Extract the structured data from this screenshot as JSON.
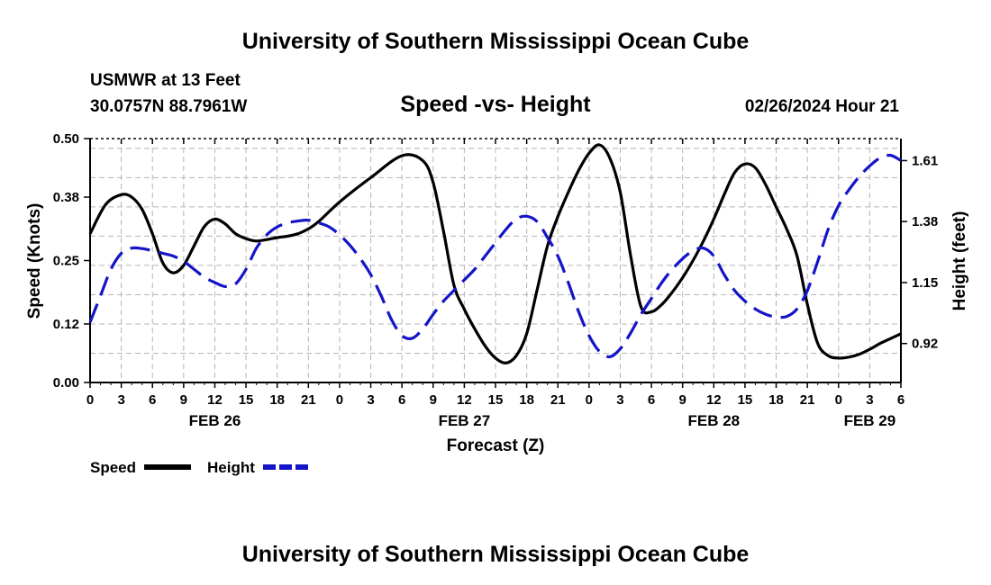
{
  "page": {
    "title_top": "University of Southern Mississippi Ocean Cube",
    "title_bottom": "University of Southern Mississippi Ocean Cube",
    "station": "USMWR at 13 Feet",
    "coords": "30.0757N  88.7961W",
    "chart_title": "Speed -vs- Height",
    "datetime": "02/26/2024 Hour 21"
  },
  "chart_data": {
    "type": "line",
    "title": "Speed -vs- Height",
    "xlabel": "Forecast (Z)",
    "ylabel": "Speed (Knots)",
    "y2label": "Height (feet)",
    "grid": true,
    "x_unit": "hours since FEB 26 00Z",
    "xlim": [
      0,
      78
    ],
    "ylim": [
      0,
      0.5
    ],
    "y2lim": [
      0.773,
      1.693
    ],
    "yticks": [
      0.0,
      0.12,
      0.25,
      0.38,
      0.5
    ],
    "ytick_labels": [
      "0.00",
      "0.12",
      "0.25",
      "0.38",
      "0.50"
    ],
    "y2ticks": [
      0.92,
      1.15,
      1.38,
      1.61
    ],
    "y2tick_labels": [
      "0.92",
      "1.15",
      "1.38",
      "1.61"
    ],
    "xtick_hours": [
      0,
      3,
      6,
      9,
      12,
      15,
      18,
      21,
      24,
      27,
      30,
      33,
      36,
      39,
      42,
      45,
      48,
      51,
      54,
      57,
      60,
      63,
      66,
      69,
      72,
      75,
      78
    ],
    "xtick_labels": [
      "0",
      "3",
      "6",
      "9",
      "12",
      "15",
      "18",
      "21",
      "0",
      "3",
      "6",
      "9",
      "12",
      "15",
      "18",
      "21",
      "0",
      "3",
      "6",
      "9",
      "12",
      "15",
      "18",
      "21",
      "0",
      "3",
      "6"
    ],
    "day_labels": [
      {
        "hour": 12,
        "label": "FEB 26"
      },
      {
        "hour": 36,
        "label": "FEB 27"
      },
      {
        "hour": 60,
        "label": "FEB 28"
      },
      {
        "hour": 75,
        "label": "FEB 29"
      }
    ],
    "legend": [
      {
        "label": "Speed",
        "color": "#000000",
        "style": "solid"
      },
      {
        "label": "Height",
        "color": "#1414c8",
        "style": "dashed"
      }
    ],
    "series": [
      {
        "name": "Speed",
        "axis": "left",
        "color": "#000000",
        "x": [
          0,
          1.5,
          3,
          4,
          5,
          6,
          7,
          8,
          9,
          10,
          11,
          12,
          13,
          14,
          15,
          16,
          17,
          18,
          19,
          20,
          21,
          22,
          24,
          27,
          30,
          32,
          33,
          34,
          35,
          36,
          37,
          38,
          39,
          40,
          41,
          42,
          43,
          44,
          45,
          46,
          47,
          48,
          49,
          50,
          51,
          52,
          53,
          54,
          55,
          56,
          57,
          58,
          59,
          60,
          61,
          62,
          63,
          64,
          65,
          66,
          67,
          68,
          69,
          70,
          71,
          72,
          73,
          74,
          75,
          76,
          77,
          78
        ],
        "values": [
          0.305,
          0.365,
          0.385,
          0.38,
          0.355,
          0.305,
          0.245,
          0.225,
          0.24,
          0.28,
          0.32,
          0.335,
          0.325,
          0.305,
          0.295,
          0.29,
          0.293,
          0.297,
          0.3,
          0.305,
          0.315,
          0.33,
          0.37,
          0.42,
          0.465,
          0.455,
          0.41,
          0.31,
          0.2,
          0.15,
          0.11,
          0.075,
          0.05,
          0.04,
          0.055,
          0.1,
          0.19,
          0.28,
          0.34,
          0.39,
          0.435,
          0.47,
          0.487,
          0.46,
          0.39,
          0.26,
          0.155,
          0.145,
          0.16,
          0.185,
          0.215,
          0.25,
          0.29,
          0.335,
          0.385,
          0.43,
          0.448,
          0.44,
          0.405,
          0.36,
          0.315,
          0.26,
          0.16,
          0.08,
          0.055,
          0.05,
          0.052,
          0.058,
          0.068,
          0.08,
          0.09,
          0.1
        ]
      },
      {
        "name": "Height",
        "axis": "right",
        "color": "#1414c8",
        "x": [
          0,
          1,
          2,
          3,
          4,
          5,
          6,
          7,
          8,
          9,
          10,
          11,
          12,
          13,
          14,
          15,
          16,
          17,
          18,
          19,
          20,
          21,
          22,
          23,
          24,
          25,
          26,
          27,
          28,
          29,
          30,
          31,
          32,
          33,
          34,
          35,
          36,
          37,
          38,
          39,
          40,
          41,
          42,
          43,
          44,
          45,
          46,
          47,
          48,
          49,
          50,
          51,
          52,
          53,
          54,
          55,
          56,
          57,
          58,
          59,
          60,
          61,
          62,
          63,
          64,
          65,
          66,
          67,
          68,
          69,
          70,
          71,
          72,
          73,
          74,
          75,
          76,
          77,
          78
        ],
        "values": [
          1.0,
          1.1,
          1.2,
          1.26,
          1.28,
          1.278,
          1.27,
          1.26,
          1.25,
          1.23,
          1.2,
          1.17,
          1.15,
          1.135,
          1.145,
          1.2,
          1.28,
          1.33,
          1.36,
          1.375,
          1.382,
          1.385,
          1.375,
          1.36,
          1.33,
          1.29,
          1.24,
          1.18,
          1.1,
          1.01,
          0.95,
          0.94,
          0.975,
          1.03,
          1.08,
          1.12,
          1.16,
          1.2,
          1.25,
          1.3,
          1.35,
          1.39,
          1.4,
          1.38,
          1.32,
          1.25,
          1.15,
          1.04,
          0.95,
          0.89,
          0.87,
          0.9,
          0.96,
          1.03,
          1.09,
          1.15,
          1.2,
          1.24,
          1.27,
          1.28,
          1.25,
          1.18,
          1.12,
          1.08,
          1.05,
          1.03,
          1.02,
          1.022,
          1.05,
          1.12,
          1.23,
          1.35,
          1.44,
          1.5,
          1.55,
          1.59,
          1.62,
          1.63,
          1.61
        ]
      }
    ]
  }
}
